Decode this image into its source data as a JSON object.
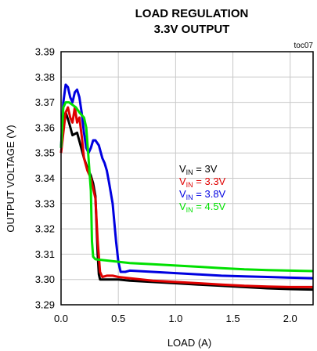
{
  "chart_data": {
    "type": "line",
    "title": "LOAD REGULATION",
    "subtitle": "3.3V OUTPUT",
    "tag": "toc07",
    "xlabel": "LOAD (A)",
    "ylabel": "OUTPUT VOLTAGE (V)",
    "xlim": [
      0,
      2.2
    ],
    "ylim": [
      3.29,
      3.39
    ],
    "x_ticks": [
      0,
      0.5,
      1,
      1.5,
      2
    ],
    "x_tick_labels": [
      "0.0",
      "0.5",
      "1.0",
      "1.5",
      "2.0"
    ],
    "y_ticks": [
      3.29,
      3.3,
      3.31,
      3.32,
      3.33,
      3.34,
      3.35,
      3.36,
      3.37,
      3.38,
      3.39
    ],
    "y_tick_labels": [
      "3.29",
      "3.30",
      "3.31",
      "3.32",
      "3.33",
      "3.34",
      "3.35",
      "3.36",
      "3.37",
      "3.38",
      "3.39"
    ],
    "grid": true,
    "legend_position": "center-right",
    "series": [
      {
        "name": "V_IN = 3V",
        "legend": {
          "prefix": "V",
          "sub": "IN",
          "suffix": " = 3V"
        },
        "color": "#000000",
        "points": [
          [
            0,
            3.352
          ],
          [
            0.02,
            3.362
          ],
          [
            0.04,
            3.366
          ],
          [
            0.07,
            3.362
          ],
          [
            0.1,
            3.357
          ],
          [
            0.14,
            3.358
          ],
          [
            0.17,
            3.353
          ],
          [
            0.2,
            3.348
          ],
          [
            0.23,
            3.344
          ],
          [
            0.26,
            3.341
          ],
          [
            0.28,
            3.338
          ],
          [
            0.3,
            3.333
          ],
          [
            0.32,
            3.31
          ],
          [
            0.33,
            3.302
          ],
          [
            0.34,
            3.3
          ],
          [
            0.36,
            3.3
          ],
          [
            0.4,
            3.3
          ],
          [
            0.45,
            3.3
          ],
          [
            0.5,
            3.3
          ],
          [
            0.6,
            3.2995
          ],
          [
            0.8,
            3.299
          ],
          [
            1.0,
            3.2985
          ],
          [
            1.2,
            3.298
          ],
          [
            1.4,
            3.2975
          ],
          [
            1.6,
            3.297
          ],
          [
            1.8,
            3.2965
          ],
          [
            2.0,
            3.2962
          ],
          [
            2.2,
            3.296
          ]
        ]
      },
      {
        "name": "V_IN = 3.3V",
        "legend": {
          "prefix": "V",
          "sub": "IN",
          "suffix": " = 3.3V"
        },
        "color": "#e00000",
        "points": [
          [
            0,
            3.35
          ],
          [
            0.02,
            3.358
          ],
          [
            0.04,
            3.366
          ],
          [
            0.06,
            3.368
          ],
          [
            0.08,
            3.364
          ],
          [
            0.1,
            3.362
          ],
          [
            0.12,
            3.368
          ],
          [
            0.14,
            3.362
          ],
          [
            0.16,
            3.364
          ],
          [
            0.18,
            3.357
          ],
          [
            0.2,
            3.348
          ],
          [
            0.23,
            3.343
          ],
          [
            0.26,
            3.34
          ],
          [
            0.28,
            3.336
          ],
          [
            0.3,
            3.332
          ],
          [
            0.32,
            3.315
          ],
          [
            0.34,
            3.303
          ],
          [
            0.36,
            3.301
          ],
          [
            0.4,
            3.3015
          ],
          [
            0.45,
            3.3015
          ],
          [
            0.5,
            3.301
          ],
          [
            0.6,
            3.3005
          ],
          [
            0.8,
            3.2995
          ],
          [
            1.0,
            3.299
          ],
          [
            1.2,
            3.2985
          ],
          [
            1.4,
            3.298
          ],
          [
            1.6,
            3.2975
          ],
          [
            1.8,
            3.2972
          ],
          [
            2.0,
            3.297
          ],
          [
            2.2,
            3.297
          ]
        ]
      },
      {
        "name": "V_IN = 3.8V",
        "legend": {
          "prefix": "V",
          "sub": "IN",
          "suffix": " = 3.8V"
        },
        "color": "#0000e0",
        "points": [
          [
            0,
            3.352
          ],
          [
            0.02,
            3.37
          ],
          [
            0.04,
            3.377
          ],
          [
            0.06,
            3.376
          ],
          [
            0.08,
            3.372
          ],
          [
            0.1,
            3.37
          ],
          [
            0.12,
            3.374
          ],
          [
            0.14,
            3.375
          ],
          [
            0.16,
            3.372
          ],
          [
            0.18,
            3.366
          ],
          [
            0.2,
            3.358
          ],
          [
            0.22,
            3.352
          ],
          [
            0.24,
            3.35
          ],
          [
            0.26,
            3.352
          ],
          [
            0.28,
            3.355
          ],
          [
            0.3,
            3.355
          ],
          [
            0.33,
            3.353
          ],
          [
            0.36,
            3.348
          ],
          [
            0.38,
            3.346
          ],
          [
            0.4,
            3.343
          ],
          [
            0.42,
            3.338
          ],
          [
            0.45,
            3.33
          ],
          [
            0.48,
            3.315
          ],
          [
            0.5,
            3.307
          ],
          [
            0.52,
            3.303
          ],
          [
            0.56,
            3.303
          ],
          [
            0.6,
            3.3035
          ],
          [
            0.8,
            3.303
          ],
          [
            1.0,
            3.3025
          ],
          [
            1.2,
            3.302
          ],
          [
            1.4,
            3.3015
          ],
          [
            1.6,
            3.3012
          ],
          [
            1.8,
            3.301
          ],
          [
            2.0,
            3.3007
          ],
          [
            2.2,
            3.3005
          ]
        ]
      },
      {
        "name": "V_IN = 4.5V",
        "legend": {
          "prefix": "V",
          "sub": "IN",
          "suffix": " = 4.5V"
        },
        "color": "#00e000",
        "points": [
          [
            0,
            3.352
          ],
          [
            0.02,
            3.368
          ],
          [
            0.04,
            3.37
          ],
          [
            0.07,
            3.37
          ],
          [
            0.1,
            3.369
          ],
          [
            0.13,
            3.368
          ],
          [
            0.16,
            3.366
          ],
          [
            0.18,
            3.365
          ],
          [
            0.2,
            3.364
          ],
          [
            0.22,
            3.36
          ],
          [
            0.24,
            3.348
          ],
          [
            0.26,
            3.335
          ],
          [
            0.27,
            3.315
          ],
          [
            0.28,
            3.309
          ],
          [
            0.3,
            3.308
          ],
          [
            0.4,
            3.3075
          ],
          [
            0.5,
            3.307
          ],
          [
            0.6,
            3.3065
          ],
          [
            0.8,
            3.306
          ],
          [
            1.0,
            3.3055
          ],
          [
            1.2,
            3.305
          ],
          [
            1.4,
            3.3045
          ],
          [
            1.6,
            3.304
          ],
          [
            1.8,
            3.3037
          ],
          [
            2.0,
            3.3035
          ],
          [
            2.2,
            3.3033
          ]
        ]
      }
    ]
  }
}
